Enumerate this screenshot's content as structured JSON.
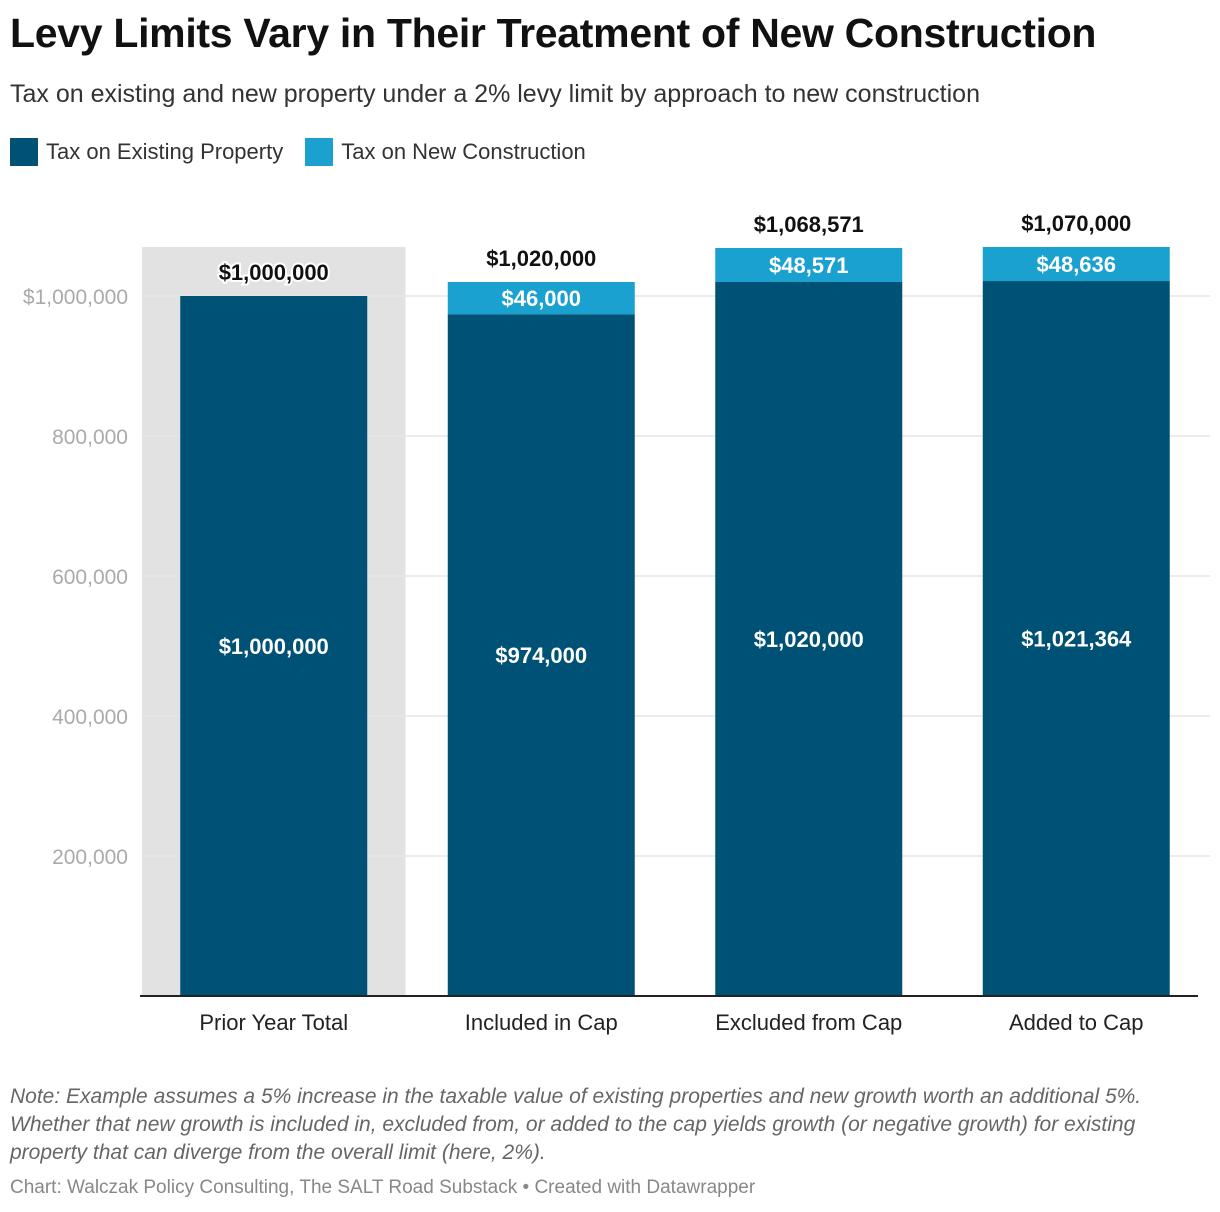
{
  "title": "Levy Limits Vary in Their Treatment of New Construction",
  "subtitle": "Tax on existing and new property under a 2% levy limit by approach to new construction",
  "note": "Note: Example assumes a 5% increase in the taxable value of existing properties and new growth worth an additional 5%. Whether that new growth is included in, excluded from, or added to the cap yields growth (or negative growth) for existing property that can diverge from the overall limit (here, 2%).",
  "source": "Chart: Walczak Policy Consulting, The SALT Road Substack • Created with Datawrapper",
  "colors": {
    "existing": "#005176",
    "new": "#1aa1cf",
    "highlight_bg": "#e2e2e2",
    "grid": "#e6e6e6",
    "axis": "#222222"
  },
  "chart_data": {
    "type": "bar",
    "stacked": true,
    "categories": [
      "Prior Year Total",
      "Included in Cap",
      "Excluded from Cap",
      "Added to Cap"
    ],
    "series": [
      {
        "name": "Tax on Existing Property",
        "values": [
          1000000,
          974000,
          1020000,
          1021364
        ],
        "labels": [
          "$1,000,000",
          "$974,000",
          "$1,020,000",
          "$1,021,364"
        ]
      },
      {
        "name": "Tax on New Construction",
        "values": [
          0,
          46000,
          48571,
          48636
        ],
        "labels": [
          "",
          "$46,000",
          "$48,571",
          "$48,636"
        ]
      }
    ],
    "totals": [
      1000000,
      1020000,
      1068571,
      1070000
    ],
    "total_labels": [
      "$1,000,000",
      "$1,020,000",
      "$1,068,571",
      "$1,070,000"
    ],
    "highlighted_category": "Prior Year Total",
    "ylim": [
      0,
      1070000
    ],
    "yticks": [
      200000,
      400000,
      600000,
      800000,
      1000000
    ],
    "ytick_labels": [
      "200,000",
      "400,000",
      "600,000",
      "800,000",
      "$1,000,000"
    ],
    "legend": [
      "Tax on Existing Property",
      "Tax on New Construction"
    ],
    "legend_position": "top-left",
    "grid": true
  }
}
